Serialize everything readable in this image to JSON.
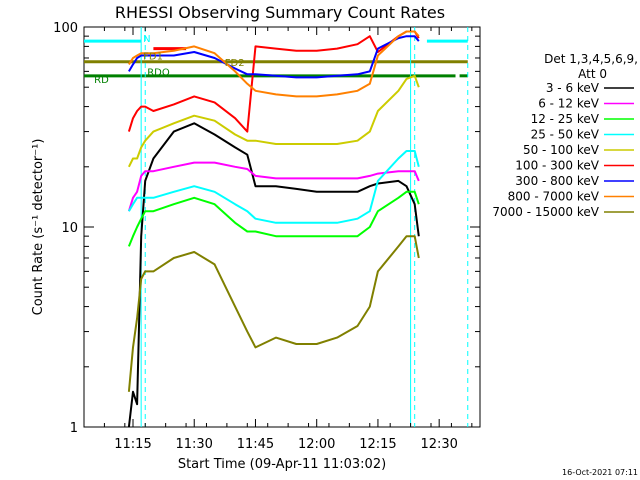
{
  "chart_data": {
    "type": "line",
    "title": "RHESSI Observing Summary Count Rates",
    "xlabel": "Start Time (09-Apr-11 11:03:02)",
    "ylabel": "Count Rate (s⁻¹ detector⁻¹)",
    "yscale": "log",
    "ylim": [
      1,
      100
    ],
    "xlim": [
      "11:03",
      "12:40"
    ],
    "x_ticks": [
      "11:15",
      "11:30",
      "11:45",
      "12:00",
      "12:15",
      "12:30"
    ],
    "y_ticks": [
      "1",
      "10",
      "100"
    ],
    "legend": {
      "title_line1": "Det 1,3,4,5,6,9,",
      "title_line2": "Att 0",
      "placement": "right"
    },
    "series": [
      {
        "name": "3 - 6 keV",
        "color": "#000000",
        "x": [
          "11:14",
          "11:15",
          "11:16",
          "11:17",
          "11:18",
          "11:20",
          "11:25",
          "11:30",
          "11:35",
          "11:40",
          "11:43",
          "11:45",
          "11:50",
          "11:55",
          "12:00",
          "12:05",
          "12:10",
          "12:13",
          "12:15",
          "12:20",
          "12:22",
          "12:24",
          "12:25"
        ],
        "y": [
          1.0,
          1.5,
          1.3,
          9,
          17,
          22,
          30,
          33,
          29,
          25,
          23,
          16,
          16,
          15.5,
          15,
          15,
          15,
          16,
          16.5,
          17,
          16,
          13,
          9
        ]
      },
      {
        "name": "6 - 12 keV",
        "color": "#ff00ff",
        "x": [
          "11:14",
          "11:15",
          "11:16",
          "11:17",
          "11:18",
          "11:20",
          "11:25",
          "11:30",
          "11:35",
          "11:40",
          "11:43",
          "11:45",
          "11:50",
          "11:55",
          "12:00",
          "12:05",
          "12:10",
          "12:13",
          "12:15",
          "12:20",
          "12:22",
          "12:24",
          "12:25"
        ],
        "y": [
          12,
          14,
          15,
          18,
          19,
          19,
          20,
          21,
          21,
          20,
          19.5,
          18,
          17.5,
          17.5,
          17.5,
          17.5,
          17.5,
          18,
          18.5,
          19,
          19,
          19,
          17
        ]
      },
      {
        "name": "12 - 25 keV",
        "color": "#00ff00",
        "x": [
          "11:14",
          "11:15",
          "11:16",
          "11:17",
          "11:18",
          "11:20",
          "11:25",
          "11:30",
          "11:35",
          "11:40",
          "11:43",
          "11:45",
          "11:50",
          "11:55",
          "12:00",
          "12:05",
          "12:10",
          "12:13",
          "12:15",
          "12:20",
          "12:22",
          "12:24",
          "12:25"
        ],
        "y": [
          8,
          9,
          10,
          11,
          12,
          12,
          13,
          14,
          13,
          10.5,
          9.5,
          9.5,
          9,
          9,
          9,
          9,
          9,
          10,
          12,
          14,
          15,
          15,
          13
        ]
      },
      {
        "name": "25 - 50 keV",
        "color": "#00ffff",
        "x": [
          "11:14",
          "11:15",
          "11:16",
          "11:17",
          "11:18",
          "11:20",
          "11:25",
          "11:30",
          "11:35",
          "11:40",
          "11:43",
          "11:45",
          "11:50",
          "11:55",
          "12:00",
          "12:05",
          "12:10",
          "12:13",
          "12:15",
          "12:20",
          "12:22",
          "12:24",
          "12:25"
        ],
        "y": [
          12,
          13,
          14,
          14,
          14,
          14,
          15,
          16,
          15,
          13,
          12,
          11,
          10.5,
          10.5,
          10.5,
          10.5,
          11,
          12,
          17,
          22,
          24,
          24,
          20
        ]
      },
      {
        "name": "50 - 100 keV",
        "color": "#cccc00",
        "x": [
          "11:14",
          "11:15",
          "11:16",
          "11:17",
          "11:18",
          "11:20",
          "11:25",
          "11:30",
          "11:35",
          "11:40",
          "11:43",
          "11:45",
          "11:50",
          "11:55",
          "12:00",
          "12:05",
          "12:10",
          "12:13",
          "12:15",
          "12:20",
          "12:22",
          "12:24",
          "12:25"
        ],
        "y": [
          20,
          22,
          22,
          25,
          27,
          30,
          33,
          36,
          34,
          29,
          27,
          27,
          26,
          26,
          26,
          26,
          27,
          30,
          38,
          48,
          55,
          57,
          50
        ]
      },
      {
        "name": "100 - 300 keV",
        "color": "#ff0000",
        "x": [
          "11:14",
          "11:15",
          "11:16",
          "11:17",
          "11:18",
          "11:20",
          "11:25",
          "11:30",
          "11:35",
          "11:40",
          "11:43",
          "11:45",
          "11:50",
          "11:55",
          "12:00",
          "12:05",
          "12:10",
          "12:13",
          "12:15",
          "12:20",
          "12:22",
          "12:24",
          "12:25"
        ],
        "y": [
          30,
          35,
          38,
          40,
          40,
          38,
          41,
          45,
          42,
          35,
          30,
          80,
          78,
          76,
          76,
          78,
          82,
          90,
          75,
          90,
          95,
          95,
          88
        ]
      },
      {
        "name": "300 - 800 keV",
        "color": "#0000ff",
        "x": [
          "11:14",
          "11:15",
          "11:16",
          "11:17",
          "11:18",
          "11:20",
          "11:25",
          "11:30",
          "11:35",
          "11:40",
          "11:43",
          "11:45",
          "11:50",
          "11:55",
          "12:00",
          "12:05",
          "12:10",
          "12:13",
          "12:15",
          "12:20",
          "12:22",
          "12:24",
          "12:25"
        ],
        "y": [
          60,
          65,
          70,
          72,
          72,
          72,
          72,
          75,
          70,
          62,
          58,
          58,
          57,
          56,
          56,
          57,
          58,
          60,
          78,
          88,
          90,
          90,
          85
        ]
      },
      {
        "name": "800 - 7000 keV",
        "color": "#ff8000",
        "x": [
          "11:14",
          "11:15",
          "11:16",
          "11:17",
          "11:18",
          "11:20",
          "11:25",
          "11:30",
          "11:35",
          "11:40",
          "11:43",
          "11:45",
          "11:50",
          "11:55",
          "12:00",
          "12:05",
          "12:10",
          "12:13",
          "12:15",
          "12:20",
          "12:22",
          "12:24",
          "12:25"
        ],
        "y": [
          65,
          70,
          72,
          74,
          74,
          74,
          76,
          80,
          74,
          60,
          52,
          48,
          46,
          45,
          45,
          46,
          48,
          52,
          72,
          90,
          95,
          95,
          90
        ]
      },
      {
        "name": "7000 - 15000 keV",
        "color": "#808000",
        "x": [
          "11:14",
          "11:15",
          "11:16",
          "11:17",
          "11:18",
          "11:20",
          "11:25",
          "11:30",
          "11:35",
          "11:40",
          "11:43",
          "11:45",
          "11:50",
          "11:55",
          "12:00",
          "12:05",
          "12:10",
          "12:13",
          "12:15",
          "12:20",
          "12:22",
          "12:24",
          "12:25"
        ],
        "y": [
          1.5,
          2.5,
          3.5,
          5.5,
          6,
          6,
          7,
          7.5,
          6.5,
          4,
          3,
          2.5,
          2.8,
          2.6,
          2.6,
          2.8,
          3.2,
          4,
          6,
          8,
          9,
          9,
          7
        ]
      }
    ],
    "annotations": [
      {
        "label": "N",
        "color": "#00ffff"
      },
      {
        "label": "FD1",
        "color": "#808000"
      },
      {
        "label": "FD2",
        "color": "#808000"
      },
      {
        "label": "RDO",
        "color": "#008000"
      },
      {
        "label": "RD",
        "color": "#008000"
      }
    ],
    "flag_bars": [
      {
        "name": "night",
        "color": "#00ffff",
        "y": 85,
        "segments": [
          [
            "11:03",
            "11:17"
          ],
          [
            "12:27",
            "12:37"
          ]
        ]
      },
      {
        "name": "saa-flag",
        "color": "#808000",
        "y": 67,
        "segments": [
          [
            "11:03",
            "12:37"
          ]
        ]
      },
      {
        "name": "decimation",
        "color": "#008000",
        "y": 57,
        "segments": [
          [
            "11:03",
            "12:34"
          ],
          [
            "12:35",
            "12:37"
          ]
        ]
      },
      {
        "name": "flare",
        "color": "#ff0000",
        "y": 78,
        "segments": [
          [
            "11:20",
            "11:28"
          ]
        ]
      }
    ],
    "vlines": [
      {
        "x": "11:17",
        "color": "#00ffff",
        "style": "solid"
      },
      {
        "x": "11:18",
        "color": "#00ffff",
        "style": "dashed"
      },
      {
        "x": "12:23",
        "color": "#00ffff",
        "style": "solid"
      },
      {
        "x": "12:24",
        "color": "#00ffff",
        "style": "dashed"
      },
      {
        "x": "12:37",
        "color": "#00ffff",
        "style": "dashed"
      }
    ]
  },
  "footer": {
    "timestamp": "16-Oct-2021 07:11"
  }
}
